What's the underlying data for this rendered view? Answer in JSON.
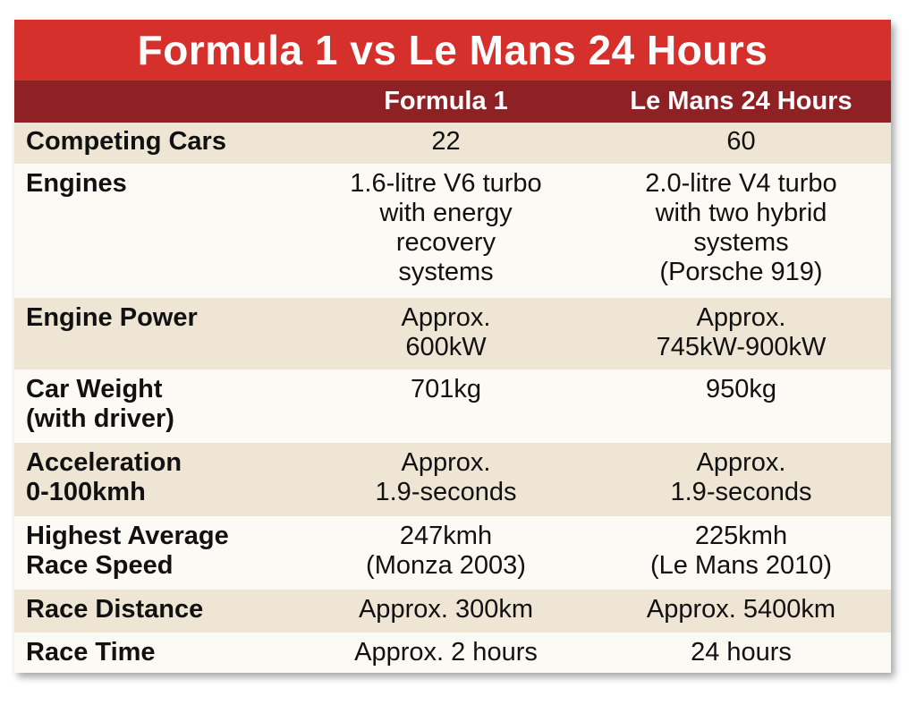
{
  "title": "Formula 1 vs Le Mans 24 Hours",
  "columns": [
    "",
    "Formula 1",
    "Le Mans 24 Hours"
  ],
  "rows": [
    {
      "label": "Competing Cars",
      "f1": "22",
      "lm": "60"
    },
    {
      "label": "Engines",
      "f1": "1.6-litre V6 turbo\nwith energy\nrecovery\nsystems",
      "lm": "2.0-litre V4 turbo\nwith two hybrid\nsystems\n(Porsche 919)"
    },
    {
      "label": "Engine Power",
      "f1": "Approx.\n600kW",
      "lm": "Approx.\n745kW-900kW"
    },
    {
      "label": "Car Weight\n(with driver)",
      "f1": "701kg",
      "lm": "950kg"
    },
    {
      "label": "Acceleration\n0-100kmh",
      "f1": "Approx.\n1.9-seconds",
      "lm": "Approx.\n1.9-seconds"
    },
    {
      "label": "Highest Average\nRace Speed",
      "f1": "247kmh\n(Monza 2003)",
      "lm": "225kmh\n(Le Mans 2010)"
    },
    {
      "label": "Race Distance",
      "f1": "Approx. 300km",
      "lm": "Approx. 5400km"
    },
    {
      "label": "Race Time",
      "f1": "Approx. 2 hours",
      "lm": "24 hours"
    }
  ],
  "colors": {
    "title_bg": "#d5302b",
    "header_bg": "#8f2124",
    "row_shade": "#efe5d4",
    "row_plain": "#fcfaf4"
  }
}
